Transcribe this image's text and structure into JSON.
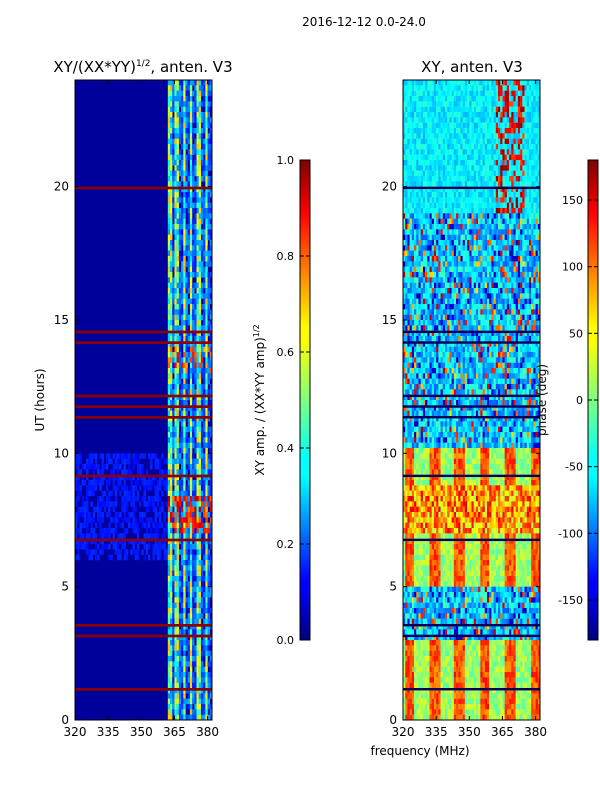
{
  "suptitle": "2016-12-12 0.0-24.0",
  "chart_data": [
    {
      "type": "heatmap",
      "title": "XY/(XX*YY)",
      "title_exp": "1/2",
      "title_suffix": ", anten. V3",
      "xlabel": "",
      "ylabel": "UT (hours)",
      "xlim": [
        320,
        382
      ],
      "ylim": [
        0,
        24
      ],
      "xticks": [
        320,
        335,
        350,
        365,
        380
      ],
      "yticks": [
        0,
        5,
        10,
        15,
        20
      ],
      "colorbar": {
        "label": "XY amp. / (XX*YY amp)",
        "label_exp": "1/2",
        "range": [
          0.0,
          1.0
        ],
        "ticks": [
          "0.0",
          "0.2",
          "0.4",
          "0.6",
          "0.8",
          "1.0"
        ],
        "colormap": "jet"
      }
    },
    {
      "type": "heatmap",
      "title": "XY, anten. V3",
      "xlabel": "frequency (MHz)",
      "ylabel": "",
      "xlim": [
        320,
        382
      ],
      "ylim": [
        0,
        24
      ],
      "xticks": [
        320,
        335,
        350,
        365,
        380
      ],
      "yticks": [
        0,
        5,
        10,
        15,
        20
      ],
      "colorbar": {
        "label": "phase (deg)",
        "range": [
          -180,
          180
        ],
        "ticks": [
          "-150",
          "-100",
          "-50",
          "0",
          "50",
          "100",
          "150"
        ],
        "colormap": "jet"
      }
    }
  ]
}
